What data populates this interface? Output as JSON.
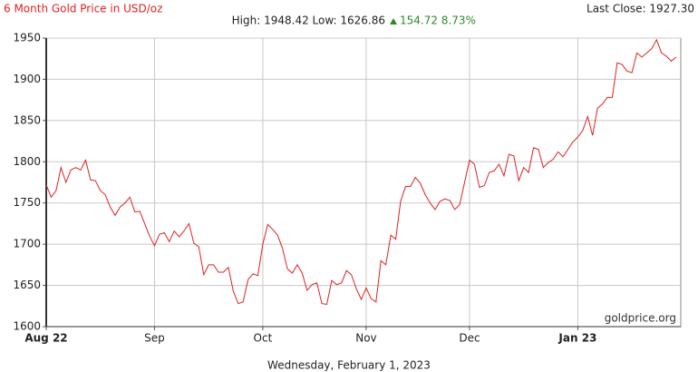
{
  "chart_data": {
    "type": "line",
    "title": "6 Month Gold Price in USD/oz",
    "stats": "High: 1948.42 Low: 1626.86",
    "change": "154.72 8.73%",
    "last_close": "Last Close: 1927.30",
    "watermark": "goldprice.org",
    "footer": "Wednesday, February 1, 2023",
    "color": "#dd2222",
    "grid": true,
    "ylim": [
      1600,
      1950
    ],
    "yticks": [
      1600,
      1650,
      1700,
      1750,
      1800,
      1850,
      1900,
      1950
    ],
    "categories": [
      "Aug 22",
      null,
      null,
      null,
      null,
      null,
      null,
      null,
      null,
      null,
      null,
      null,
      null,
      null,
      null,
      null,
      null,
      null,
      null,
      null,
      null,
      null,
      "Sep",
      null,
      null,
      null,
      null,
      null,
      null,
      null,
      null,
      null,
      null,
      null,
      null,
      null,
      null,
      null,
      null,
      null,
      null,
      null,
      null,
      null,
      "Oct",
      null,
      null,
      null,
      null,
      null,
      null,
      null,
      null,
      null,
      null,
      null,
      null,
      null,
      null,
      null,
      null,
      null,
      null,
      null,
      null,
      "Nov",
      null,
      null,
      null,
      null,
      null,
      null,
      null,
      null,
      null,
      null,
      null,
      null,
      null,
      null,
      null,
      null,
      null,
      null,
      null,
      null,
      "Dec",
      null,
      null,
      null,
      null,
      null,
      null,
      null,
      null,
      null,
      null,
      null,
      null,
      null,
      null,
      null,
      null,
      null,
      null,
      null,
      null,
      null,
      "Jan 23",
      null,
      null,
      null,
      null,
      null,
      null,
      null,
      null,
      null,
      null,
      null,
      null,
      null,
      null,
      null,
      null,
      null,
      null,
      null,
      null
    ],
    "values": [
      1772,
      1757,
      1765,
      1793,
      1775,
      1790,
      1793,
      1790,
      1802,
      1778,
      1777,
      1765,
      1760,
      1745,
      1735,
      1745,
      1750,
      1757,
      1739,
      1740,
      1725,
      1710,
      1698,
      1712,
      1714,
      1703,
      1716,
      1709,
      1716,
      1725,
      1701,
      1697,
      1663,
      1675,
      1675,
      1666,
      1666,
      1672,
      1643,
      1628,
      1630,
      1657,
      1664,
      1662,
      1700,
      1724,
      1718,
      1711,
      1695,
      1670,
      1665,
      1675,
      1665,
      1644,
      1651,
      1653,
      1628,
      1627,
      1656,
      1651,
      1653,
      1668,
      1663,
      1646,
      1633,
      1647,
      1634,
      1630,
      1680,
      1675,
      1711,
      1706,
      1752,
      1770,
      1770,
      1781,
      1774,
      1760,
      1750,
      1742,
      1752,
      1755,
      1753,
      1742,
      1748,
      1775,
      1802,
      1797,
      1769,
      1771,
      1787,
      1789,
      1797,
      1783,
      1809,
      1807,
      1777,
      1793,
      1787,
      1817,
      1815,
      1793,
      1799,
      1803,
      1812,
      1806,
      1815,
      1824,
      1830,
      1838,
      1855,
      1832,
      1865,
      1870,
      1878,
      1878,
      1920,
      1918,
      1910,
      1908,
      1932,
      1927,
      1932,
      1937,
      1948,
      1932,
      1928,
      1922,
      1927
    ]
  }
}
